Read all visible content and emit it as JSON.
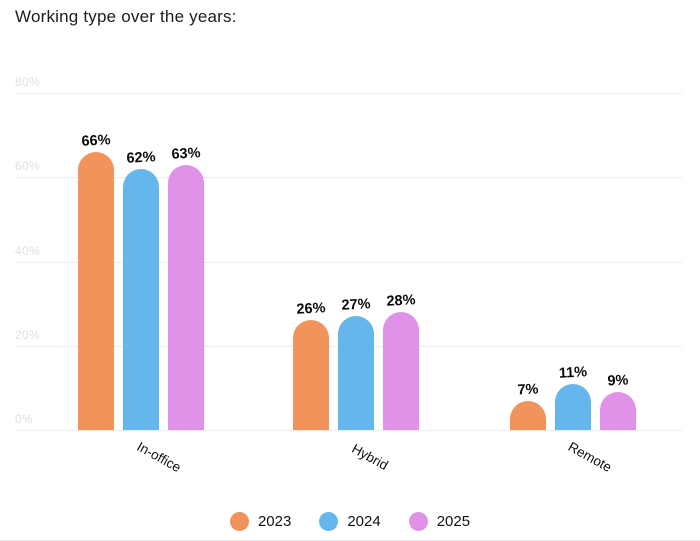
{
  "title": "Working type over the years:",
  "chart_data": {
    "type": "bar",
    "title": "Working type over the years:",
    "categories": [
      "In-office",
      "Hybrid",
      "Remote"
    ],
    "series": [
      {
        "name": "2023",
        "color": "#F0945C",
        "values": [
          66,
          26,
          7
        ]
      },
      {
        "name": "2024",
        "color": "#64B6EC",
        "values": [
          62,
          27,
          11
        ]
      },
      {
        "name": "2025",
        "color": "#E092E9",
        "values": [
          63,
          28,
          9
        ]
      }
    ],
    "value_suffix": "%",
    "yticks": [
      "0%",
      "20%",
      "40%",
      "60%",
      "80%"
    ],
    "ylim": [
      0,
      80
    ],
    "grid": true,
    "legend_position": "bottom",
    "colors": {
      "gridline": "#ececec",
      "ytick_text": "#dfdfdf",
      "value_label_text": "#0a0a0a",
      "category_label_text": "#121212",
      "title_text": "#1d1d1f",
      "background": "#ffffff"
    }
  }
}
